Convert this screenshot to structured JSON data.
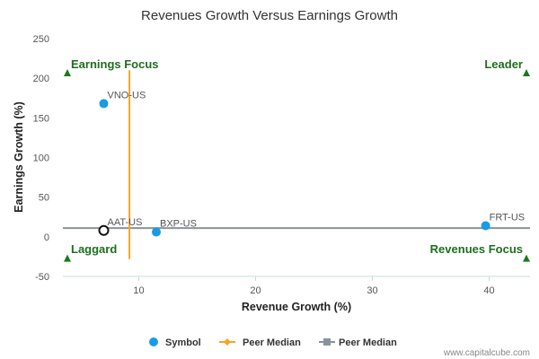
{
  "chart_data": {
    "type": "scatter",
    "title": "Revenues Growth Versus Earnings Growth",
    "xlabel": "Revenue Growth (%)",
    "ylabel": "Earnings Growth (%)",
    "xlim": [
      3.5,
      43.5
    ],
    "ylim": [
      -50,
      250
    ],
    "x_ticks": [
      10,
      20,
      30,
      40
    ],
    "y_ticks": [
      -50,
      0,
      50,
      100,
      150,
      200,
      250
    ],
    "points": [
      {
        "label": "VNO-US",
        "x": 7.0,
        "y": 168,
        "kind": "peer"
      },
      {
        "label": "AAT-US",
        "x": 7.0,
        "y": 8,
        "kind": "focus"
      },
      {
        "label": "BXP-US",
        "x": 11.5,
        "y": 6,
        "kind": "peer"
      },
      {
        "label": "FRT-US",
        "x": 39.7,
        "y": 14,
        "kind": "peer"
      }
    ],
    "peer_median_x": 9.2,
    "peer_median_y": 11,
    "quadrants": {
      "top_left": "Earnings Focus",
      "top_right": "Leader",
      "bottom_left": "Laggard",
      "bottom_right": "Revenues Focus"
    },
    "legend": [
      {
        "label": "Symbol",
        "marker": "circle",
        "color": "#1a9be6"
      },
      {
        "label": "Peer Median",
        "marker": "diamond-line",
        "color": "#f5a623"
      },
      {
        "label": "Peer Median",
        "marker": "square-line",
        "color": "#8c929c"
      }
    ],
    "colors": {
      "point": "#1a9be6",
      "focus_stroke": "#111111",
      "vertical_median": "#f5a623",
      "horizontal_median": "#8c929c",
      "quadrant": "#1a7a1a",
      "axis": "#c6dcd9"
    }
  },
  "footer": {
    "credit": "www.capitalcube.com"
  }
}
